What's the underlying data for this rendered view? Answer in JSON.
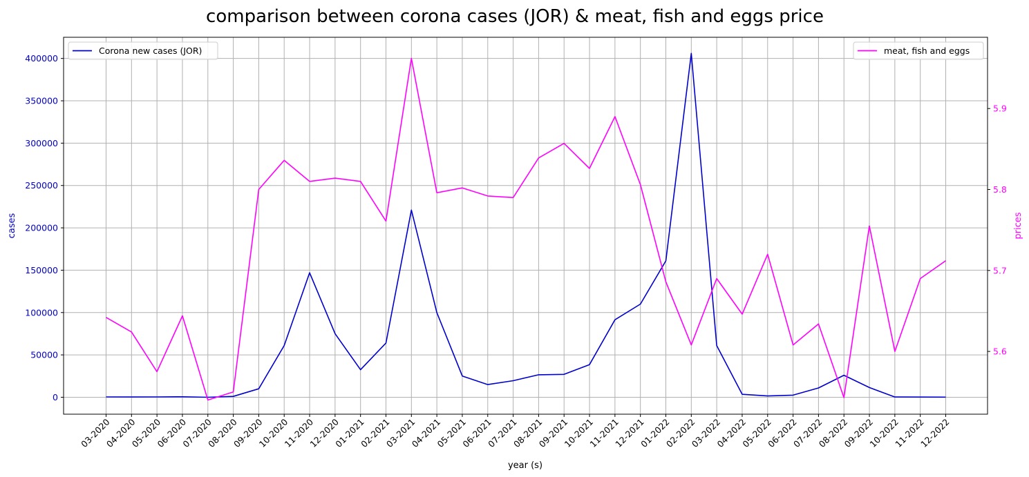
{
  "chart_data": {
    "type": "line",
    "title": "comparison between corona cases (JOR) & meat, fish and eggs price",
    "xlabel": "year (s)",
    "ylabel_left": "cases",
    "ylabel_right": "prices",
    "categories": [
      "03-2020",
      "04-2020",
      "05-2020",
      "06-2020",
      "07-2020",
      "08-2020",
      "09-2020",
      "10-2020",
      "11-2020",
      "12-2020",
      "01-2021",
      "02-2021",
      "03-2021",
      "04-2021",
      "05-2021",
      "06-2021",
      "07-2021",
      "08-2021",
      "09-2021",
      "10-2021",
      "11-2021",
      "12-2021",
      "01-2022",
      "02-2022",
      "03-2022",
      "04-2022",
      "05-2022",
      "06-2022",
      "07-2022",
      "08-2022",
      "09-2022",
      "10-2022",
      "11-2022",
      "12-2022"
    ],
    "ylim_left": [
      -20000,
      425000
    ],
    "yticks_left": [
      0,
      50000,
      100000,
      150000,
      200000,
      250000,
      300000,
      350000,
      400000
    ],
    "ylim_right": [
      5.5225,
      5.988
    ],
    "yticks_right": [
      5.6,
      5.7,
      5.8,
      5.9
    ],
    "grid": true,
    "series": [
      {
        "name": "Corona new cases (JOR)",
        "axis": "left",
        "color": "#0000cd",
        "legend": "top-left",
        "values": [
          400,
          300,
          400,
          500,
          0,
          1000,
          10000,
          61000,
          147000,
          75000,
          32500,
          64000,
          221000,
          100000,
          25000,
          15000,
          19500,
          26500,
          27000,
          38500,
          91500,
          110000,
          161000,
          406000,
          61000,
          3500,
          1500,
          2500,
          11000,
          26000,
          11500,
          300,
          200,
          100
        ]
      },
      {
        "name": "meat, fish and eggs",
        "axis": "right",
        "color": "#ff00ff",
        "legend": "top-right",
        "values": [
          5.642,
          5.624,
          5.575,
          5.644,
          5.54,
          5.55,
          5.8,
          5.836,
          5.81,
          5.814,
          5.81,
          5.761,
          5.962,
          5.796,
          5.802,
          5.792,
          5.79,
          5.839,
          5.857,
          5.826,
          5.89,
          5.806,
          5.686,
          5.608,
          5.69,
          5.646,
          5.72,
          5.608,
          5.634,
          5.543,
          5.755,
          5.6,
          5.69,
          5.712
        ]
      }
    ]
  }
}
